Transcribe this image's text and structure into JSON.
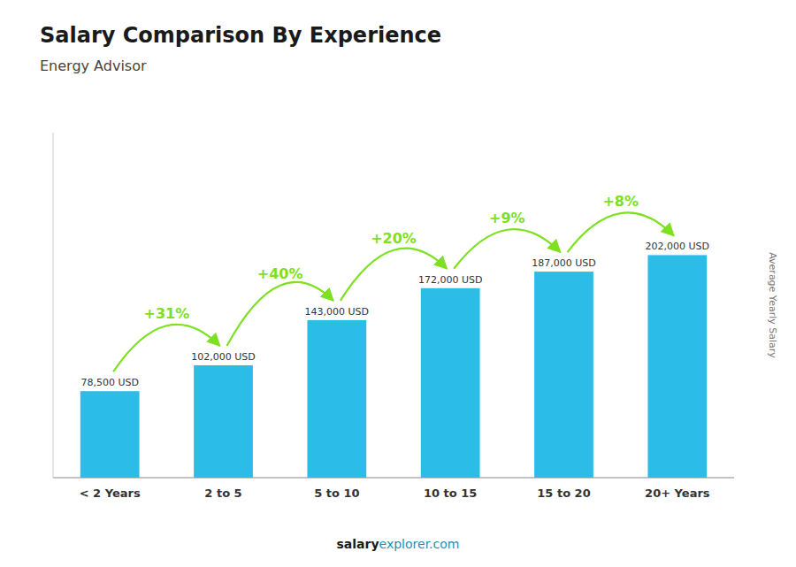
{
  "chart_data": {
    "type": "bar",
    "title": "Salary Comparison By Experience",
    "subtitle": "Energy Advisor",
    "categories": [
      "< 2 Years",
      "2 to 5",
      "5 to 10",
      "10 to 15",
      "15 to 20",
      "20+ Years"
    ],
    "values": [
      78500,
      102000,
      143000,
      172000,
      187000,
      202000
    ],
    "value_labels": [
      "78,500 USD",
      "102,000 USD",
      "143,000 USD",
      "172,000 USD",
      "187,000 USD",
      "202,000 USD"
    ],
    "data_labels": true,
    "color": "#2bbde8",
    "ylim": [
      0,
      313100
    ],
    "tick_labels": "x",
    "grid": false,
    "y_label": "Average Yearly Salary",
    "pct_changes": [
      "+31%",
      "+40%",
      "+20%",
      "+9%",
      "+8%"
    ],
    "pct_color": "#7de020",
    "footer": {
      "bold": "salary",
      "normal": "explorer.com"
    }
  }
}
